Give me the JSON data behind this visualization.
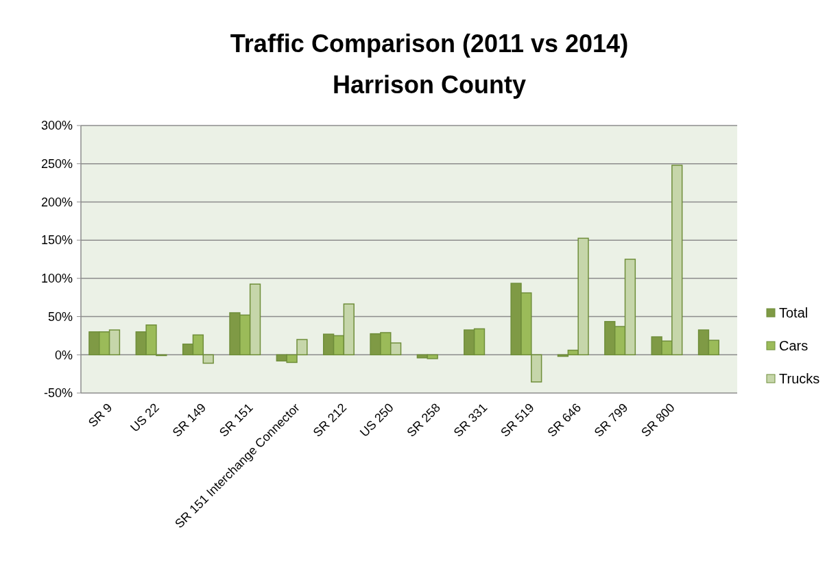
{
  "chart_data": {
    "type": "bar",
    "title": "Traffic Comparison (2011 vs 2014)",
    "subtitle": "Harrison County",
    "categories": [
      "SR 9",
      "US 22",
      "SR 149",
      "SR 151",
      "SR 151 Interchange Connector",
      "SR 212",
      "US 250",
      "SR 258",
      "SR 331",
      "SR 519",
      "SR 646",
      "SR 799",
      "SR 800",
      null
    ],
    "series": [
      {
        "name": "Total",
        "color": "#7f9a45",
        "values": [
          30,
          30,
          14,
          55,
          -8,
          27,
          27.5,
          -4,
          32.5,
          93.5,
          -2,
          43.5,
          23.5,
          32.5
        ]
      },
      {
        "name": "Cars",
        "color": "#9bbb59",
        "values": [
          30,
          39,
          26,
          52,
          -10,
          25,
          29,
          -5,
          34,
          81,
          6,
          37,
          18,
          19
        ]
      },
      {
        "name": "Trucks",
        "color": "#c6d6aa",
        "values": [
          32.5,
          -1,
          -11,
          92.5,
          20,
          66.5,
          15.5,
          0,
          0,
          -35.5,
          152.5,
          125,
          248,
          null
        ]
      }
    ],
    "ylim": [
      -50,
      300
    ],
    "yticks": [
      {
        "value": -50,
        "label": "-50%"
      },
      {
        "value": 0,
        "label": "0%"
      },
      {
        "value": 50,
        "label": "50%"
      },
      {
        "value": 100,
        "label": "100%"
      },
      {
        "value": 150,
        "label": "150%"
      },
      {
        "value": 200,
        "label": "200%"
      },
      {
        "value": 250,
        "label": "250%"
      },
      {
        "value": 300,
        "label": "300%"
      }
    ],
    "grid": "y",
    "legend": "right"
  }
}
